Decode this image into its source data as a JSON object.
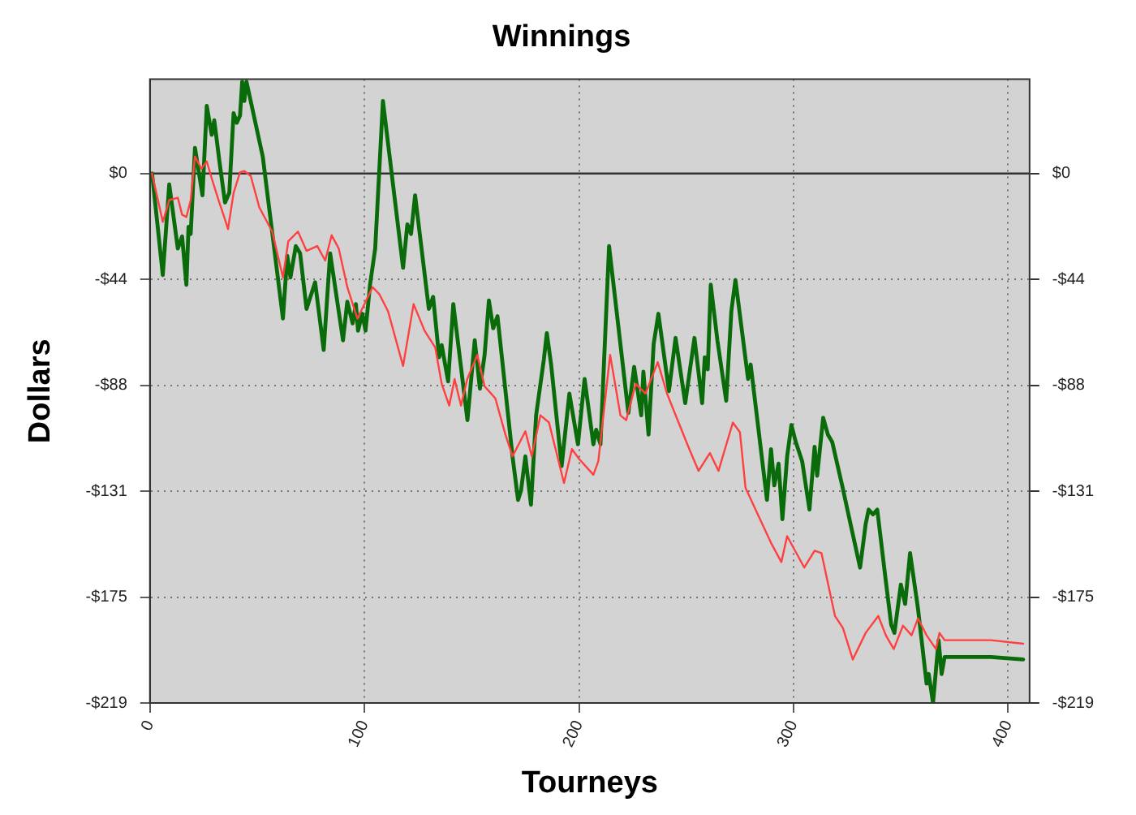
{
  "chart_data": {
    "type": "line",
    "title": "Winnings",
    "xlabel": "Tourneys",
    "ylabel": "Dollars",
    "xlim": [
      0,
      410
    ],
    "xticks": [
      0,
      100,
      200,
      300,
      400
    ],
    "ylim": [
      -219,
      39
    ],
    "yticks": [
      {
        "value": 0,
        "label": "$0"
      },
      {
        "value": -43.8,
        "label": "-$44"
      },
      {
        "value": -87.6,
        "label": "-$88"
      },
      {
        "value": -131.4,
        "label": "-$131"
      },
      {
        "value": -175.2,
        "label": "-$175"
      },
      {
        "value": -219,
        "label": "-$219"
      }
    ],
    "y2lim": [
      -219,
      39
    ],
    "y2ticks": [
      {
        "value": 0,
        "label": "$0"
      },
      {
        "value": -43.8,
        "label": "-$44"
      },
      {
        "value": -87.6,
        "label": "-$88"
      },
      {
        "value": -131.4,
        "label": "-$131"
      },
      {
        "value": -175.2,
        "label": "-$175"
      },
      {
        "value": -219,
        "label": "-$219"
      }
    ],
    "grid": true,
    "legend": false,
    "ref_lines": [
      {
        "axis": "y",
        "value": 0,
        "color": "#333333"
      }
    ],
    "series": [
      {
        "color": "#ff4040",
        "x": [
          1,
          6,
          9,
          13,
          15,
          17,
          19,
          21,
          24,
          26.5,
          28.8,
          32,
          35,
          36.4,
          39,
          42,
          44,
          47,
          51,
          57,
          62,
          64.5,
          69,
          73,
          78,
          81.7,
          84.7,
          88,
          92,
          96.7,
          100,
          103.8,
          107,
          111,
          118,
          122.9,
          128,
          133,
          136,
          139.5,
          142,
          145,
          147.9,
          152.6,
          156,
          161,
          165.7,
          169,
          175,
          178,
          182,
          186,
          193,
          196.7,
          200,
          206.7,
          209,
          214.5,
          219.3,
          222,
          226.4,
          231,
          236.7,
          241,
          245.5,
          251.4,
          255.7,
          261,
          265,
          271.7,
          275,
          277.6,
          283.6,
          289.5,
          294.3,
          297,
          305,
          309.8,
          313,
          319.3,
          323,
          327.6,
          333.6,
          339.5,
          343,
          346.7,
          351,
          355,
          358,
          362,
          366.4,
          368,
          370.4,
          392,
          407
        ],
        "values": [
          0,
          -20,
          -11,
          -10,
          -17,
          -18,
          -11,
          7,
          2,
          5,
          -2,
          -11,
          -19,
          -23,
          -8,
          0.5,
          1,
          -1,
          -14,
          -24,
          -43,
          -28,
          -24,
          -32,
          -30,
          -36,
          -25.5,
          -31,
          -47,
          -60,
          -54,
          -47,
          -50,
          -57,
          -79.6,
          -54,
          -65,
          -72,
          -87,
          -96,
          -85,
          -96,
          -85,
          -75,
          -88,
          -93,
          -108,
          -117,
          -106.6,
          -117,
          -100,
          -103,
          -128,
          -114,
          -118,
          -124.6,
          -119,
          -75,
          -100,
          -102,
          -87,
          -91,
          -78,
          -91,
          -101,
          -114,
          -123,
          -115.6,
          -123,
          -103,
          -107,
          -130,
          -141.5,
          -152.8,
          -160.7,
          -150,
          -163,
          -156,
          -157,
          -183,
          -188,
          -201,
          -190,
          -183,
          -191,
          -196.7,
          -187,
          -191,
          -184,
          -191,
          -196.7,
          -190,
          -193,
          -193,
          -194.5
        ]
      },
      {
        "color": "#0a6b0a",
        "x": [
          1,
          6,
          9,
          13,
          15,
          17,
          18,
          19,
          21,
          24.5,
          26.5,
          28.8,
          30,
          32.4,
          35,
          37,
          39,
          40.5,
          42,
          43,
          44,
          45,
          52.6,
          62,
          64,
          65.5,
          68,
          70,
          73,
          77,
          81,
          84,
          90,
          92,
          94.5,
          96,
          97,
          99,
          100.5,
          102.6,
          105,
          108.6,
          118,
          120,
          121.7,
          123.6,
          130,
          132,
          134.8,
          136,
          139,
          141.4,
          148,
          151.4,
          153.8,
          156,
          158,
          160,
          162,
          169,
          171.6,
          173,
          175,
          177.6,
          180,
          183.6,
          185,
          187,
          191.9,
          195.5,
          199.5,
          202.6,
          206.7,
          208,
          210,
          214,
          223,
          225.7,
          229,
          230,
          232.4,
          234.8,
          237,
          241.9,
          245,
          249.5,
          253.8,
          257.4,
          258.6,
          260,
          261.4,
          264.5,
          268.6,
          271,
          272.9,
          278.8,
          280,
          287.6,
          289.5,
          291,
          293,
          294.8,
          297,
          299,
          301,
          304,
          307.4,
          309.8,
          311,
          313.8,
          316,
          318,
          322.9,
          325.7,
          331,
          333.6,
          335,
          337,
          339,
          343,
          345.5,
          347,
          350,
          352,
          354.3,
          358,
          362,
          363,
          365,
          367.6,
          369,
          370.4,
          392,
          407
        ],
        "values": [
          0,
          -42,
          -4.5,
          -31,
          -26,
          -46,
          -22,
          -25,
          10.6,
          -9,
          28,
          16,
          22,
          5,
          -12,
          -8,
          25,
          21,
          24,
          38,
          30,
          38,
          7,
          -60,
          -34,
          -43,
          -30,
          -33,
          -56,
          -45,
          -73,
          -33,
          -69,
          -53,
          -62,
          -54,
          -65,
          -58,
          -65,
          -46,
          -31,
          30,
          -39,
          -21,
          -25,
          -9,
          -56,
          -51,
          -76,
          -71,
          -86,
          -54,
          -102,
          -69,
          -89,
          -75,
          -52.5,
          -64,
          -59,
          -117,
          -135,
          -131,
          -117,
          -137,
          -100,
          -77,
          -66,
          -79,
          -121,
          -91,
          -112,
          -85,
          -112,
          -106,
          -112,
          -30,
          -99,
          -80,
          -100,
          -82,
          -108,
          -70.5,
          -58,
          -90,
          -68,
          -95,
          -68,
          -95,
          -76,
          -81,
          -46,
          -69,
          -94,
          -57,
          -44,
          -85,
          -79,
          -135,
          -114,
          -129,
          -120,
          -143,
          -117,
          -104,
          -111,
          -119,
          -139,
          -113,
          -125,
          -101,
          -108,
          -111,
          -130,
          -141.5,
          -163,
          -145,
          -139,
          -141,
          -139,
          -168.6,
          -186.6,
          -190,
          -170,
          -178,
          -157,
          -180,
          -211,
          -207,
          -219,
          -193,
          -207,
          -200,
          -200,
          -201
        ]
      }
    ]
  }
}
